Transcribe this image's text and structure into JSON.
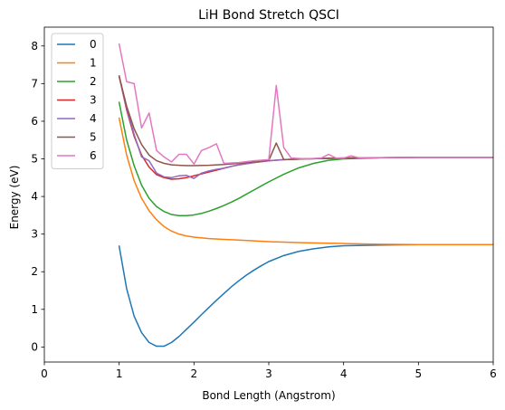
{
  "chart_data": {
    "type": "line",
    "title": "LiH Bond Stretch QSCI",
    "xlabel": "Bond Length (Angstrom)",
    "ylabel": "Energy (eV)",
    "xlim": [
      0,
      6
    ],
    "ylim": [
      -0.4,
      8.5
    ],
    "xticks": [
      0,
      1,
      2,
      3,
      4,
      5,
      6
    ],
    "yticks": [
      0,
      1,
      2,
      3,
      4,
      5,
      6,
      7,
      8
    ],
    "grid": false,
    "legend_position": "upper-left",
    "series": [
      {
        "name": "0",
        "color": "#1f77b4",
        "points": [
          [
            1.0,
            2.68
          ],
          [
            1.1,
            1.55
          ],
          [
            1.2,
            0.82
          ],
          [
            1.3,
            0.38
          ],
          [
            1.4,
            0.12
          ],
          [
            1.5,
            0.02
          ],
          [
            1.6,
            0.02
          ],
          [
            1.7,
            0.12
          ],
          [
            1.8,
            0.28
          ],
          [
            1.9,
            0.47
          ],
          [
            2.0,
            0.66
          ],
          [
            2.1,
            0.86
          ],
          [
            2.2,
            1.05
          ],
          [
            2.3,
            1.24
          ],
          [
            2.4,
            1.42
          ],
          [
            2.5,
            1.6
          ],
          [
            2.6,
            1.76
          ],
          [
            2.7,
            1.91
          ],
          [
            2.8,
            2.04
          ],
          [
            2.9,
            2.16
          ],
          [
            3.0,
            2.27
          ],
          [
            3.2,
            2.43
          ],
          [
            3.4,
            2.54
          ],
          [
            3.6,
            2.61
          ],
          [
            3.8,
            2.66
          ],
          [
            4.0,
            2.69
          ],
          [
            4.5,
            2.71
          ],
          [
            5.0,
            2.72
          ],
          [
            5.5,
            2.72
          ],
          [
            6.0,
            2.72
          ]
        ]
      },
      {
        "name": "1",
        "color": "#ff7f0e",
        "points": [
          [
            1.0,
            6.08
          ],
          [
            1.1,
            5.1
          ],
          [
            1.2,
            4.42
          ],
          [
            1.3,
            3.95
          ],
          [
            1.4,
            3.62
          ],
          [
            1.5,
            3.38
          ],
          [
            1.6,
            3.2
          ],
          [
            1.7,
            3.08
          ],
          [
            1.8,
            3.0
          ],
          [
            1.9,
            2.95
          ],
          [
            2.0,
            2.92
          ],
          [
            2.2,
            2.88
          ],
          [
            2.4,
            2.86
          ],
          [
            2.6,
            2.84
          ],
          [
            2.8,
            2.82
          ],
          [
            3.0,
            2.8
          ],
          [
            3.5,
            2.77
          ],
          [
            4.0,
            2.75
          ],
          [
            4.5,
            2.73
          ],
          [
            5.0,
            2.72
          ],
          [
            6.0,
            2.72
          ]
        ]
      },
      {
        "name": "2",
        "color": "#2ca02c",
        "points": [
          [
            1.0,
            6.5
          ],
          [
            1.1,
            5.5
          ],
          [
            1.2,
            4.82
          ],
          [
            1.3,
            4.3
          ],
          [
            1.4,
            3.95
          ],
          [
            1.5,
            3.73
          ],
          [
            1.6,
            3.6
          ],
          [
            1.7,
            3.52
          ],
          [
            1.8,
            3.49
          ],
          [
            1.9,
            3.49
          ],
          [
            2.0,
            3.51
          ],
          [
            2.1,
            3.55
          ],
          [
            2.2,
            3.61
          ],
          [
            2.3,
            3.68
          ],
          [
            2.4,
            3.76
          ],
          [
            2.5,
            3.85
          ],
          [
            2.6,
            3.95
          ],
          [
            2.7,
            4.06
          ],
          [
            2.8,
            4.17
          ],
          [
            2.9,
            4.28
          ],
          [
            3.0,
            4.39
          ],
          [
            3.2,
            4.59
          ],
          [
            3.4,
            4.76
          ],
          [
            3.6,
            4.88
          ],
          [
            3.8,
            4.96
          ],
          [
            4.0,
            5.0
          ],
          [
            4.5,
            5.03
          ],
          [
            5.0,
            5.04
          ],
          [
            6.0,
            5.04
          ]
        ]
      },
      {
        "name": "3",
        "color": "#d62728",
        "points": [
          [
            1.0,
            7.2
          ],
          [
            1.1,
            6.3
          ],
          [
            1.2,
            5.6
          ],
          [
            1.3,
            5.1
          ],
          [
            1.4,
            4.78
          ],
          [
            1.5,
            4.58
          ],
          [
            1.6,
            4.5
          ],
          [
            1.7,
            4.46
          ],
          [
            1.8,
            4.47
          ],
          [
            1.9,
            4.5
          ],
          [
            2.0,
            4.55
          ],
          [
            2.1,
            4.6
          ],
          [
            2.2,
            4.65
          ],
          [
            2.3,
            4.7
          ],
          [
            2.4,
            4.75
          ],
          [
            2.5,
            4.8
          ],
          [
            2.6,
            4.84
          ],
          [
            2.8,
            4.9
          ],
          [
            3.0,
            4.95
          ],
          [
            3.2,
            4.98
          ],
          [
            3.5,
            5.0
          ],
          [
            4.0,
            5.02
          ],
          [
            5.0,
            5.04
          ],
          [
            6.0,
            5.04
          ]
        ]
      },
      {
        "name": "4",
        "color": "#9467bd",
        "points": [
          [
            1.0,
            7.18
          ],
          [
            1.1,
            6.35
          ],
          [
            1.2,
            5.65
          ],
          [
            1.3,
            5.05
          ],
          [
            1.4,
            4.95
          ],
          [
            1.5,
            4.62
          ],
          [
            1.6,
            4.52
          ],
          [
            1.7,
            4.5
          ],
          [
            1.8,
            4.55
          ],
          [
            1.9,
            4.56
          ],
          [
            2.0,
            4.48
          ],
          [
            2.1,
            4.62
          ],
          [
            2.2,
            4.68
          ],
          [
            2.3,
            4.72
          ],
          [
            2.4,
            4.75
          ],
          [
            2.5,
            4.8
          ],
          [
            2.6,
            4.84
          ],
          [
            2.8,
            4.9
          ],
          [
            3.0,
            4.95
          ],
          [
            3.2,
            4.98
          ],
          [
            3.5,
            5.0
          ],
          [
            4.0,
            5.02
          ],
          [
            5.0,
            5.04
          ],
          [
            6.0,
            5.04
          ]
        ]
      },
      {
        "name": "5",
        "color": "#8c564b",
        "points": [
          [
            1.0,
            7.2
          ],
          [
            1.1,
            6.4
          ],
          [
            1.2,
            5.8
          ],
          [
            1.3,
            5.38
          ],
          [
            1.4,
            5.1
          ],
          [
            1.5,
            4.95
          ],
          [
            1.6,
            4.88
          ],
          [
            1.7,
            4.84
          ],
          [
            1.8,
            4.83
          ],
          [
            1.9,
            4.82
          ],
          [
            2.0,
            4.82
          ],
          [
            2.2,
            4.83
          ],
          [
            2.4,
            4.85
          ],
          [
            2.6,
            4.88
          ],
          [
            2.8,
            4.92
          ],
          [
            3.0,
            4.96
          ],
          [
            3.1,
            5.42
          ],
          [
            3.2,
            4.98
          ],
          [
            3.5,
            5.0
          ],
          [
            4.0,
            5.02
          ],
          [
            5.0,
            5.04
          ],
          [
            6.0,
            5.04
          ]
        ]
      },
      {
        "name": "6",
        "color": "#e377c2",
        "points": [
          [
            1.0,
            8.05
          ],
          [
            1.1,
            7.05
          ],
          [
            1.2,
            7.0
          ],
          [
            1.3,
            5.82
          ],
          [
            1.4,
            6.22
          ],
          [
            1.5,
            5.22
          ],
          [
            1.6,
            5.05
          ],
          [
            1.7,
            4.92
          ],
          [
            1.8,
            5.12
          ],
          [
            1.9,
            5.12
          ],
          [
            2.0,
            4.86
          ],
          [
            2.1,
            5.22
          ],
          [
            2.2,
            5.3
          ],
          [
            2.3,
            5.4
          ],
          [
            2.4,
            4.88
          ],
          [
            2.6,
            4.9
          ],
          [
            2.8,
            4.95
          ],
          [
            3.0,
            4.98
          ],
          [
            3.1,
            6.95
          ],
          [
            3.2,
            5.3
          ],
          [
            3.3,
            5.02
          ],
          [
            3.5,
            5.0
          ],
          [
            3.7,
            5.02
          ],
          [
            3.8,
            5.12
          ],
          [
            3.9,
            5.02
          ],
          [
            4.0,
            5.02
          ],
          [
            4.1,
            5.08
          ],
          [
            4.2,
            5.03
          ],
          [
            5.0,
            5.04
          ],
          [
            6.0,
            5.04
          ]
        ]
      }
    ]
  }
}
